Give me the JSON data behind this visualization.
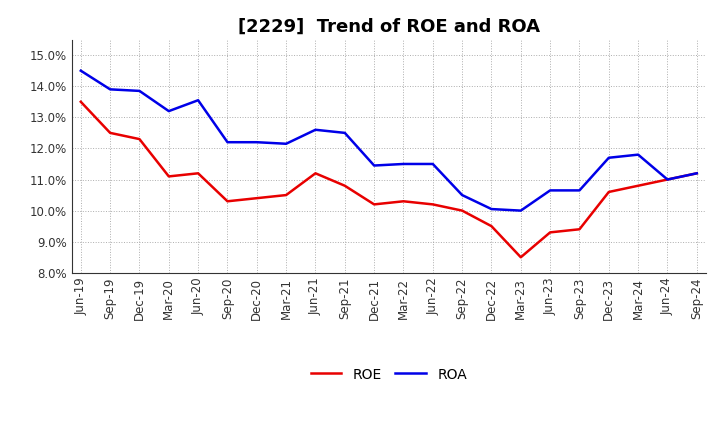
{
  "title": "[2229]  Trend of ROE and ROA",
  "x_labels": [
    "Jun-19",
    "Sep-19",
    "Dec-19",
    "Mar-20",
    "Jun-20",
    "Sep-20",
    "Dec-20",
    "Mar-21",
    "Jun-21",
    "Sep-21",
    "Dec-21",
    "Mar-22",
    "Jun-22",
    "Sep-22",
    "Dec-22",
    "Mar-23",
    "Jun-23",
    "Sep-23",
    "Dec-23",
    "Mar-24",
    "Jun-24",
    "Sep-24"
  ],
  "ROE": [
    13.5,
    12.5,
    12.3,
    11.1,
    11.2,
    10.3,
    10.4,
    10.5,
    11.2,
    10.8,
    10.2,
    10.3,
    10.2,
    10.0,
    9.5,
    8.5,
    9.3,
    9.4,
    10.6,
    10.8,
    11.0,
    11.2
  ],
  "ROA": [
    14.5,
    13.9,
    13.85,
    13.2,
    13.55,
    12.2,
    12.2,
    12.15,
    12.6,
    12.5,
    11.45,
    11.5,
    11.5,
    10.5,
    10.05,
    10.0,
    10.65,
    10.65,
    11.7,
    11.8,
    11.0,
    11.2
  ],
  "roe_color": "#e80000",
  "roa_color": "#0000e8",
  "ylim": [
    8.0,
    15.5
  ],
  "yticks": [
    8.0,
    9.0,
    10.0,
    11.0,
    12.0,
    13.0,
    14.0,
    15.0
  ],
  "background_color": "#ffffff",
  "grid_color": "#999999",
  "title_fontsize": 13,
  "legend_fontsize": 10,
  "axis_fontsize": 8.5
}
